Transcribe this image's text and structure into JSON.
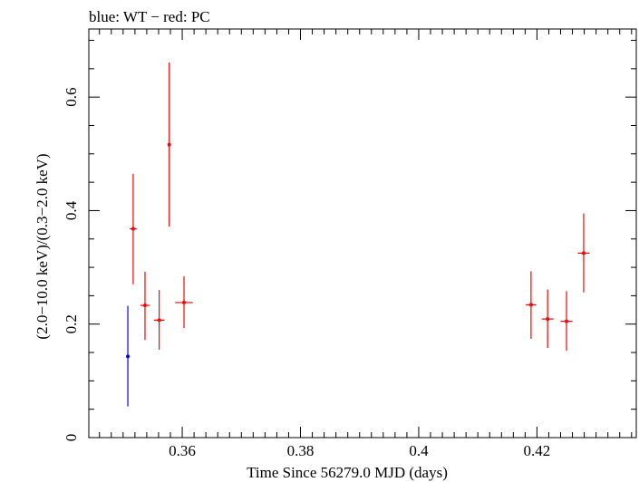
{
  "chart_data": {
    "type": "scatter",
    "title": "blue: WT − red: PC",
    "xlabel": "Time Since 56279.0 MJD (days)",
    "ylabel": "(2.0−10.0 keV)/(0.3−2.0 keV)",
    "xlim": [
      0.3442,
      0.4368
    ],
    "ylim": [
      0,
      0.72
    ],
    "x_ticks": [
      0.36,
      0.38,
      0.4,
      0.42
    ],
    "x_tick_labels": [
      "0.36",
      "0.38",
      "0.4",
      "0.42"
    ],
    "y_ticks": [
      0,
      0.2,
      0.4,
      0.6
    ],
    "y_tick_labels": [
      "0",
      "0.2",
      "0.4",
      "0.6"
    ],
    "x_minor_step": 0.002,
    "y_minor_step": 0.05,
    "series": [
      {
        "name": "WT",
        "color": "#0000ff",
        "points": [
          {
            "x": 0.3508,
            "y": 0.143,
            "xerr": 0.0,
            "ylo": 0.055,
            "yhi": 0.232
          }
        ]
      },
      {
        "name": "PC",
        "color": "#ff0000",
        "points": [
          {
            "x": 0.3517,
            "y": 0.368,
            "xerr": 0.0006,
            "ylo": 0.27,
            "yhi": 0.465
          },
          {
            "x": 0.3537,
            "y": 0.233,
            "xerr": 0.0008,
            "ylo": 0.172,
            "yhi": 0.292
          },
          {
            "x": 0.3561,
            "y": 0.207,
            "xerr": 0.0009,
            "ylo": 0.155,
            "yhi": 0.26
          },
          {
            "x": 0.3578,
            "y": 0.516,
            "xerr": 0.0002,
            "ylo": 0.372,
            "yhi": 0.661
          },
          {
            "x": 0.3603,
            "y": 0.238,
            "xerr": 0.0015,
            "ylo": 0.193,
            "yhi": 0.284
          },
          {
            "x": 0.419,
            "y": 0.234,
            "xerr": 0.0009,
            "ylo": 0.174,
            "yhi": 0.293
          },
          {
            "x": 0.4218,
            "y": 0.209,
            "xerr": 0.001,
            "ylo": 0.158,
            "yhi": 0.261
          },
          {
            "x": 0.425,
            "y": 0.205,
            "xerr": 0.001,
            "ylo": 0.153,
            "yhi": 0.258
          },
          {
            "x": 0.4279,
            "y": 0.325,
            "xerr": 0.001,
            "ylo": 0.256,
            "yhi": 0.395
          }
        ]
      }
    ]
  }
}
